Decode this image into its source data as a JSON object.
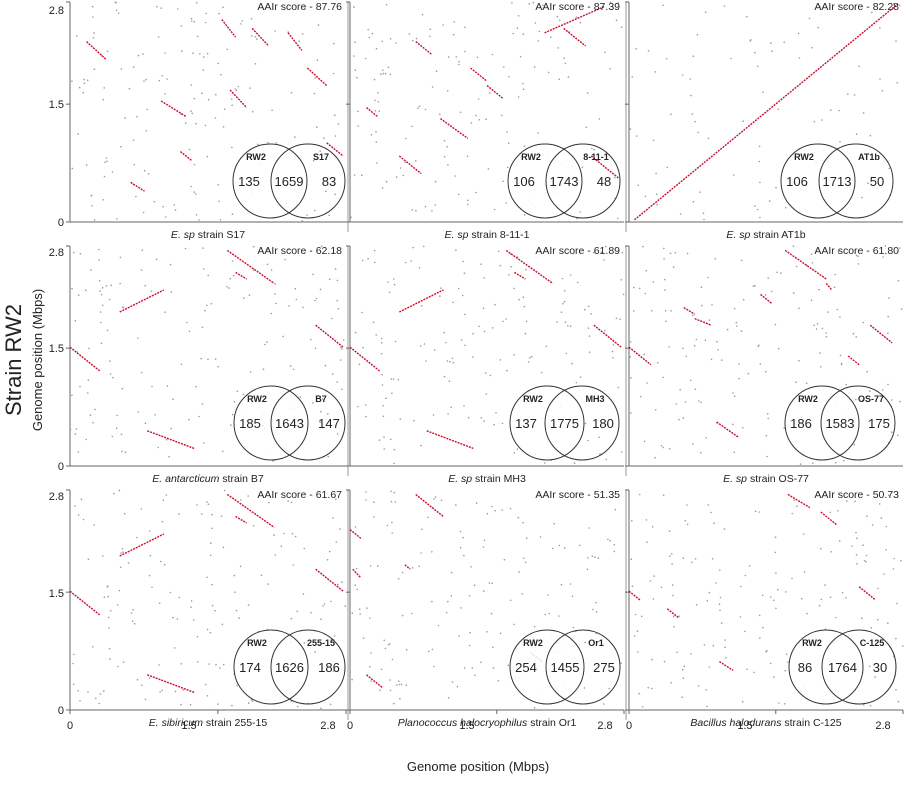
{
  "figure": {
    "y_title": "Strain RW2",
    "y_label": "Genome position (Mbps)",
    "x_label": "Genome position (Mbps)",
    "y_ticks": [
      "0",
      "1.5",
      "2.8"
    ],
    "x_ticks": [
      "0",
      "1.5",
      "2.8"
    ]
  },
  "colors": {
    "syntenic": "#c8102e",
    "dots": "#9a9a9a",
    "axis": "#666666"
  },
  "chart_data": [
    {
      "type": "scatter",
      "panel": "S17",
      "pattern": "scattered",
      "title_italic": "E. sp",
      "title_rest": " strain S17",
      "score": "AAIr score - 87.76",
      "venn": {
        "left": "RW2",
        "right": "S17",
        "a": "135",
        "ab": "1659",
        "b": "83"
      },
      "xlim": [
        0,
        2.8
      ],
      "ylim": [
        0,
        2.8
      ]
    },
    {
      "type": "scatter",
      "panel": "8-11-1",
      "pattern": "scattered2",
      "title_italic": "E. sp",
      "title_rest": " strain 8-11-1",
      "score": "AAIr score - 87.39",
      "venn": {
        "left": "RW2",
        "right": "8-11-1",
        "a": "106",
        "ab": "1743",
        "b": "48"
      },
      "xlim": [
        0,
        2.8
      ],
      "ylim": [
        0,
        2.8
      ]
    },
    {
      "type": "scatter",
      "panel": "AT1b",
      "pattern": "diagonal",
      "title_italic": "E. sp",
      "title_rest": " strain AT1b",
      "score": "AAIr score - 82.28",
      "venn": {
        "left": "RW2",
        "right": "AT1b",
        "a": "106",
        "ab": "1713",
        "b": "50"
      },
      "xlim": [
        0,
        2.8
      ],
      "ylim": [
        0,
        2.8
      ]
    },
    {
      "type": "scatter",
      "panel": "B7",
      "pattern": "inverted",
      "title_italic": "E. antarcticum",
      "title_rest": " strain B7",
      "score": "AAIr score - 62.18",
      "venn": {
        "left": "RW2",
        "right": "B7",
        "a": "185",
        "ab": "1643",
        "b": "147"
      },
      "xlim": [
        0,
        2.8
      ],
      "ylim": [
        0,
        2.8
      ]
    },
    {
      "type": "scatter",
      "panel": "MH3",
      "pattern": "inverted",
      "title_italic": "E. sp",
      "title_rest": " strain MH3",
      "score": "AAIr score - 61.89",
      "venn": {
        "left": "RW2",
        "right": "MH3",
        "a": "137",
        "ab": "1775",
        "b": "180"
      },
      "xlim": [
        0,
        2.8
      ],
      "ylim": [
        0,
        2.8
      ]
    },
    {
      "type": "scatter",
      "panel": "OS-77",
      "pattern": "fragmented",
      "title_italic": "E. sp",
      "title_rest": " strain OS-77",
      "score": "AAIr score - 61.80",
      "venn": {
        "left": "RW2",
        "right": "OS-77",
        "a": "186",
        "ab": "1583",
        "b": "175"
      },
      "xlim": [
        0,
        2.8
      ],
      "ylim": [
        0,
        2.8
      ]
    },
    {
      "type": "scatter",
      "panel": "255-15",
      "pattern": "inverted",
      "title_italic": "E. sibiricum",
      "title_rest": " strain 255-15",
      "score": "AAIr score - 61.67",
      "venn": {
        "left": "RW2",
        "right": "255-15",
        "a": "174",
        "ab": "1626",
        "b": "186"
      },
      "xlim": [
        0,
        2.8
      ],
      "ylim": [
        0,
        2.8
      ]
    },
    {
      "type": "scatter",
      "panel": "Or1",
      "pattern": "sparse",
      "title_italic": "Planococcus halocryophilus",
      "title_rest": " strain Or1",
      "score": "AAIr score - 51.35",
      "venn": {
        "left": "RW2",
        "right": "Or1",
        "a": "254",
        "ab": "1455",
        "b": "275"
      },
      "xlim": [
        0,
        2.8
      ],
      "ylim": [
        0,
        2.8
      ]
    },
    {
      "type": "scatter",
      "panel": "C-125",
      "pattern": "sparse2",
      "title_italic": "Bacillus halodurans",
      "title_rest": " strain C-125",
      "score": "AAIr score - 50.73",
      "venn": {
        "left": "RW2",
        "right": "C-125",
        "a": "86",
        "ab": "1764",
        "b": "30"
      },
      "xlim": [
        0,
        2.8
      ],
      "ylim": [
        0,
        2.8
      ]
    }
  ]
}
